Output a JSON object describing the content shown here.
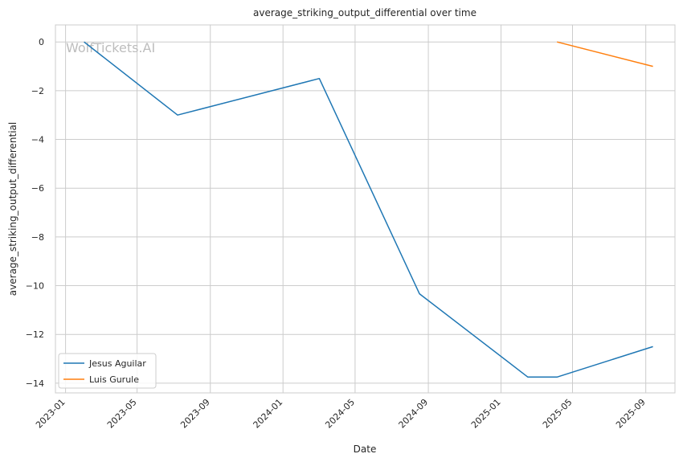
{
  "chart_data": {
    "type": "line",
    "title": "average_striking_output_differential over time",
    "xlabel": "Date",
    "ylabel": "average_striking_output_differential",
    "watermark": "WolfTickets.AI",
    "grid": true,
    "legend_position": "lower-left",
    "x_ticks": [
      "2023-01",
      "2023-05",
      "2023-09",
      "2024-01",
      "2024-05",
      "2024-09",
      "2025-01",
      "2025-05",
      "2025-09"
    ],
    "y_ticks": [
      0,
      -2,
      -4,
      -6,
      -8,
      -10,
      -12,
      -14
    ],
    "ylim": [
      -14.4,
      0.7
    ],
    "xlim": [
      "2022-12-15",
      "2025-10-20"
    ],
    "series": [
      {
        "name": "Jesus Aguilar",
        "color": "#1f77b4",
        "x": [
          "2023-02-01",
          "2023-07-08",
          "2024-03-02",
          "2024-08-17",
          "2025-02-15",
          "2025-04-05",
          "2025-09-13"
        ],
        "y": [
          0,
          -3,
          -1.5,
          -10.33,
          -13.75,
          -13.75,
          -12.5
        ]
      },
      {
        "name": "Luis Gurule",
        "color": "#ff7f0e",
        "x": [
          "2025-04-05",
          "2025-09-13"
        ],
        "y": [
          0,
          -1
        ]
      }
    ]
  }
}
